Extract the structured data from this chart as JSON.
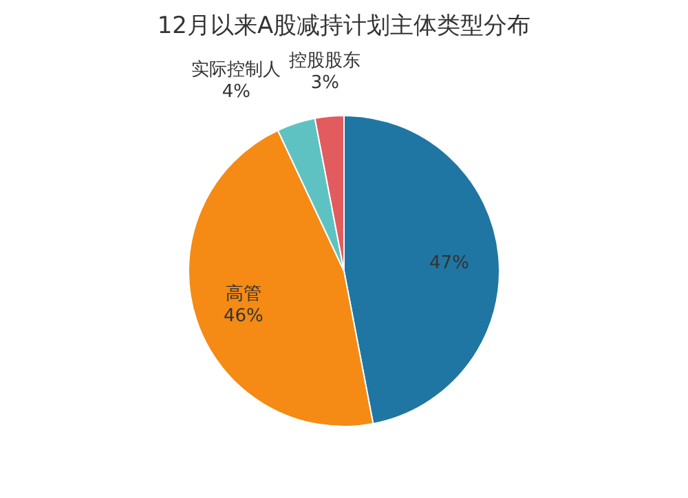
{
  "chart_data": {
    "type": "pie",
    "title": "12月以来A股减持计划主体类型分布",
    "categories": [
      null,
      "高管",
      "实际控制人",
      "控股股东"
    ],
    "values": [
      47,
      46,
      4,
      3
    ],
    "colors": [
      "#1f76a3",
      "#f58a14",
      "#5fc2c2",
      "#e25b5f"
    ],
    "value_labels": [
      "47%",
      "46%",
      "4%",
      "3%"
    ]
  }
}
